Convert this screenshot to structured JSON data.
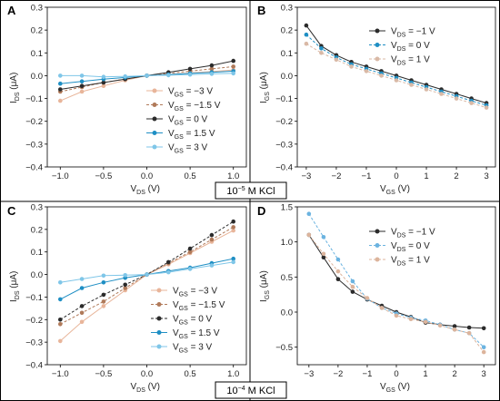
{
  "conc_labels": [
    {
      "base": "10",
      "exp": "−5",
      "rest": " M KCl"
    },
    {
      "base": "10",
      "exp": "−4",
      "rest": " M KCl"
    }
  ],
  "chart_data": [
    {
      "panel": "A",
      "type": "line",
      "xlabel": {
        "main": "V",
        "sub": "DS",
        "unit": "  (V)"
      },
      "ylabel": {
        "main": "I",
        "sub": "DS",
        "unit": " (μA)"
      },
      "xlim": [
        -1.15,
        1.15
      ],
      "ylim": [
        -0.4,
        0.3
      ],
      "xticks": [
        -1.0,
        -0.5,
        0.0,
        0.5,
        1.0
      ],
      "xtick_labels": [
        "−1.0",
        "−0.5",
        "0.0",
        "0.5",
        "1.0"
      ],
      "yticks": [
        -0.4,
        -0.3,
        -0.2,
        -0.1,
        0.0,
        0.1,
        0.2,
        0.3
      ],
      "ytick_labels": [
        "−0.4",
        "−0.3",
        "−0.2",
        "−0.1",
        "0.0",
        "0.1",
        "0.2",
        "0.3"
      ],
      "legend": "lower-right",
      "series": [
        {
          "name": "V",
          "sub": "GS",
          "value": " = −3 V",
          "color": "#e8b59a",
          "dash": "none",
          "x": [
            -1.0,
            -0.75,
            -0.5,
            -0.25,
            0.0,
            0.25,
            0.5,
            0.75,
            1.0
          ],
          "y": [
            -0.11,
            -0.07,
            -0.045,
            -0.02,
            0.0,
            0.005,
            0.012,
            0.018,
            0.025
          ]
        },
        {
          "name": "V",
          "sub": "GS",
          "value": " = −1.5 V",
          "color": "#b07a5a",
          "dash": "3,2",
          "x": [
            -1.0,
            -0.75,
            -0.5,
            -0.25,
            0.0,
            0.25,
            0.5,
            0.75,
            1.0
          ],
          "y": [
            -0.07,
            -0.05,
            -0.03,
            -0.015,
            0.0,
            0.01,
            0.02,
            0.03,
            0.04
          ]
        },
        {
          "name": "V",
          "sub": "GS",
          "value": " = 0 V",
          "color": "#2b2b2b",
          "dash": "none",
          "x": [
            -1.0,
            -0.75,
            -0.5,
            -0.25,
            0.0,
            0.25,
            0.5,
            0.75,
            1.0
          ],
          "y": [
            -0.06,
            -0.045,
            -0.03,
            -0.015,
            0.0,
            0.015,
            0.03,
            0.045,
            0.065
          ]
        },
        {
          "name": "V",
          "sub": "GS",
          "value": " = 1.5 V",
          "color": "#1f8fc4",
          "dash": "none",
          "x": [
            -1.0,
            -0.75,
            -0.5,
            -0.25,
            0.0,
            0.25,
            0.5,
            0.75,
            1.0
          ],
          "y": [
            -0.035,
            -0.025,
            -0.015,
            -0.008,
            0.0,
            0.005,
            0.01,
            0.015,
            0.02
          ]
        },
        {
          "name": "V",
          "sub": "GS",
          "value": " = 3 V",
          "color": "#7fc6e8",
          "dash": "none",
          "x": [
            -1.0,
            -0.75,
            -0.5,
            -0.25,
            0.0,
            0.25,
            0.5,
            0.75,
            1.0
          ],
          "y": [
            0.0,
            0.0,
            -0.005,
            -0.003,
            0.0,
            0.002,
            0.005,
            0.008,
            0.01
          ]
        }
      ]
    },
    {
      "panel": "B",
      "type": "line",
      "xlabel": {
        "main": "V",
        "sub": "GS",
        "unit": "  (V)"
      },
      "ylabel": {
        "main": "I",
        "sub": "GS",
        "unit": " (μA)"
      },
      "xlim": [
        -3.3,
        3.3
      ],
      "ylim": [
        -0.4,
        0.3
      ],
      "xticks": [
        -3,
        -2,
        -1,
        0,
        1,
        2,
        3
      ],
      "xtick_labels": [
        "−3",
        "−2",
        "−1",
        "0",
        "1",
        "2",
        "3"
      ],
      "yticks": [
        -0.4,
        -0.3,
        -0.2,
        -0.1,
        0.0,
        0.1,
        0.2,
        0.3
      ],
      "ytick_labels": [
        "−0.4",
        "−0.3",
        "−0.2",
        "−0.1",
        "0.0",
        "0.1",
        "0.2",
        "0.3"
      ],
      "legend": "top-right",
      "series": [
        {
          "name": "V",
          "sub": "DS",
          "value": " = −1 V",
          "color": "#2b2b2b",
          "dash": "none",
          "x": [
            -3,
            -2.5,
            -2,
            -1.5,
            -1,
            -0.5,
            0,
            0.5,
            1,
            1.5,
            2,
            2.5,
            3
          ],
          "y": [
            0.22,
            0.13,
            0.09,
            0.06,
            0.04,
            0.02,
            0.0,
            -0.02,
            -0.04,
            -0.06,
            -0.08,
            -0.1,
            -0.12
          ]
        },
        {
          "name": "V",
          "sub": "DS",
          "value": " = 0 V",
          "color": "#1f8fc4",
          "dash": "3,2",
          "x": [
            -3,
            -2.5,
            -2,
            -1.5,
            -1,
            -0.5,
            0,
            0.5,
            1,
            1.5,
            2,
            2.5,
            3
          ],
          "y": [
            0.18,
            0.12,
            0.08,
            0.05,
            0.03,
            0.01,
            -0.01,
            -0.03,
            -0.05,
            -0.07,
            -0.09,
            -0.11,
            -0.13
          ]
        },
        {
          "name": "V",
          "sub": "DS",
          "value": " = 1 V",
          "color": "#d9b9a6",
          "dash": "3,2",
          "x": [
            -3,
            -2.5,
            -2,
            -1.5,
            -1,
            -0.5,
            0,
            0.5,
            1,
            1.5,
            2,
            2.5,
            3
          ],
          "y": [
            0.14,
            0.1,
            0.07,
            0.04,
            0.02,
            0.0,
            -0.02,
            -0.04,
            -0.06,
            -0.08,
            -0.1,
            -0.12,
            -0.14
          ]
        }
      ]
    },
    {
      "panel": "C",
      "type": "line",
      "xlabel": {
        "main": "V",
        "sub": "DS",
        "unit": "  (V)"
      },
      "ylabel": {
        "main": "I",
        "sub": "DS",
        "unit": " (μA)"
      },
      "xlim": [
        -1.15,
        1.15
      ],
      "ylim": [
        -0.4,
        0.3
      ],
      "xticks": [
        -1.0,
        -0.5,
        0.0,
        0.5,
        1.0
      ],
      "xtick_labels": [
        "−1.0",
        "−0.5",
        "0.0",
        "0.5",
        "1.0"
      ],
      "yticks": [
        -0.4,
        -0.3,
        -0.2,
        -0.1,
        0.0,
        0.1,
        0.2,
        0.3
      ],
      "ytick_labels": [
        "−0.4",
        "−0.3",
        "−0.2",
        "−0.1",
        "0.0",
        "0.1",
        "0.2",
        "0.3"
      ],
      "legend": "lower-right",
      "series": [
        {
          "name": "V",
          "sub": "GS",
          "value": " = −3 V",
          "color": "#e8b59a",
          "dash": "none",
          "x": [
            -1.0,
            -0.75,
            -0.5,
            -0.25,
            0.0,
            0.25,
            0.5,
            0.75,
            1.0
          ],
          "y": [
            -0.295,
            -0.21,
            -0.14,
            -0.07,
            0.0,
            0.045,
            0.095,
            0.145,
            0.195
          ]
        },
        {
          "name": "V",
          "sub": "GS",
          "value": " = −1.5 V",
          "color": "#b07a5a",
          "dash": "3,2",
          "x": [
            -1.0,
            -0.75,
            -0.5,
            -0.25,
            0.0,
            0.25,
            0.5,
            0.75,
            1.0
          ],
          "y": [
            -0.22,
            -0.17,
            -0.12,
            -0.06,
            0.0,
            0.05,
            0.1,
            0.155,
            0.21
          ]
        },
        {
          "name": "V",
          "sub": "GS",
          "value": " = 0 V",
          "color": "#2b2b2b",
          "dash": "3,2",
          "x": [
            -1.0,
            -0.75,
            -0.5,
            -0.25,
            0.0,
            0.25,
            0.5,
            0.75,
            1.0
          ],
          "y": [
            -0.2,
            -0.14,
            -0.09,
            -0.045,
            0.0,
            0.055,
            0.115,
            0.175,
            0.235
          ]
        },
        {
          "name": "V",
          "sub": "GS",
          "value": " = 1.5 V",
          "color": "#1f8fc4",
          "dash": "none",
          "x": [
            -1.0,
            -0.75,
            -0.5,
            -0.25,
            0.0,
            0.25,
            0.5,
            0.75,
            1.0
          ],
          "y": [
            -0.11,
            -0.06,
            -0.035,
            -0.015,
            0.0,
            0.015,
            0.03,
            0.05,
            0.07
          ]
        },
        {
          "name": "V",
          "sub": "GS",
          "value": " = 3 V",
          "color": "#7fc6e8",
          "dash": "none",
          "x": [
            -1.0,
            -0.75,
            -0.5,
            -0.25,
            0.0,
            0.25,
            0.5,
            0.75,
            1.0
          ],
          "y": [
            -0.035,
            -0.02,
            -0.005,
            -0.003,
            0.0,
            0.01,
            0.025,
            0.04,
            0.055
          ]
        }
      ]
    },
    {
      "panel": "D",
      "type": "line",
      "xlabel": {
        "main": "V",
        "sub": "GS",
        "unit": "  (V)"
      },
      "ylabel": {
        "main": "I",
        "sub": "GS",
        "unit": " (μA)"
      },
      "xlim": [
        -3.4,
        3.4
      ],
      "ylim": [
        -0.75,
        1.5
      ],
      "xticks": [
        -3,
        -2,
        -1,
        0,
        1,
        2,
        3
      ],
      "xtick_labels": [
        "−3",
        "−2",
        "−1",
        "0",
        "1",
        "2",
        "3"
      ],
      "yticks": [
        -0.5,
        0.0,
        0.5,
        1.0,
        1.5
      ],
      "ytick_labels": [
        "−0.5",
        "0.0",
        "0.5",
        "1.0",
        "1.5"
      ],
      "legend": "top-right",
      "series": [
        {
          "name": "V",
          "sub": "DS",
          "value": " = −1 V",
          "color": "#2b2b2b",
          "dash": "none",
          "x": [
            -3,
            -2.5,
            -2,
            -1.5,
            -1,
            -0.5,
            0,
            0.5,
            1,
            1.5,
            2,
            2.5,
            3
          ],
          "y": [
            1.1,
            0.78,
            0.47,
            0.29,
            0.18,
            0.09,
            0.0,
            -0.07,
            -0.15,
            -0.18,
            -0.2,
            -0.22,
            -0.23
          ]
        },
        {
          "name": "V",
          "sub": "DS",
          "value": " = 0 V",
          "color": "#6bb3e0",
          "dash": "3,2",
          "x": [
            -3,
            -2.5,
            -2,
            -1.5,
            -1,
            -0.5,
            0,
            0.5,
            1,
            1.5,
            2,
            2.5,
            3
          ],
          "y": [
            1.4,
            1.07,
            0.75,
            0.44,
            0.19,
            0.06,
            -0.02,
            -0.08,
            -0.12,
            -0.18,
            -0.25,
            -0.3,
            -0.5
          ]
        },
        {
          "name": "V",
          "sub": "DS",
          "value": " = 1 V",
          "color": "#dcb49c",
          "dash": "3,2",
          "x": [
            -3,
            -2.5,
            -2,
            -1.5,
            -1,
            -0.5,
            0,
            0.5,
            1,
            1.5,
            2,
            2.5,
            3
          ],
          "y": [
            1.1,
            0.83,
            0.58,
            0.36,
            0.2,
            0.06,
            -0.05,
            -0.1,
            -0.14,
            -0.19,
            -0.25,
            -0.3,
            -0.57
          ]
        }
      ]
    }
  ]
}
